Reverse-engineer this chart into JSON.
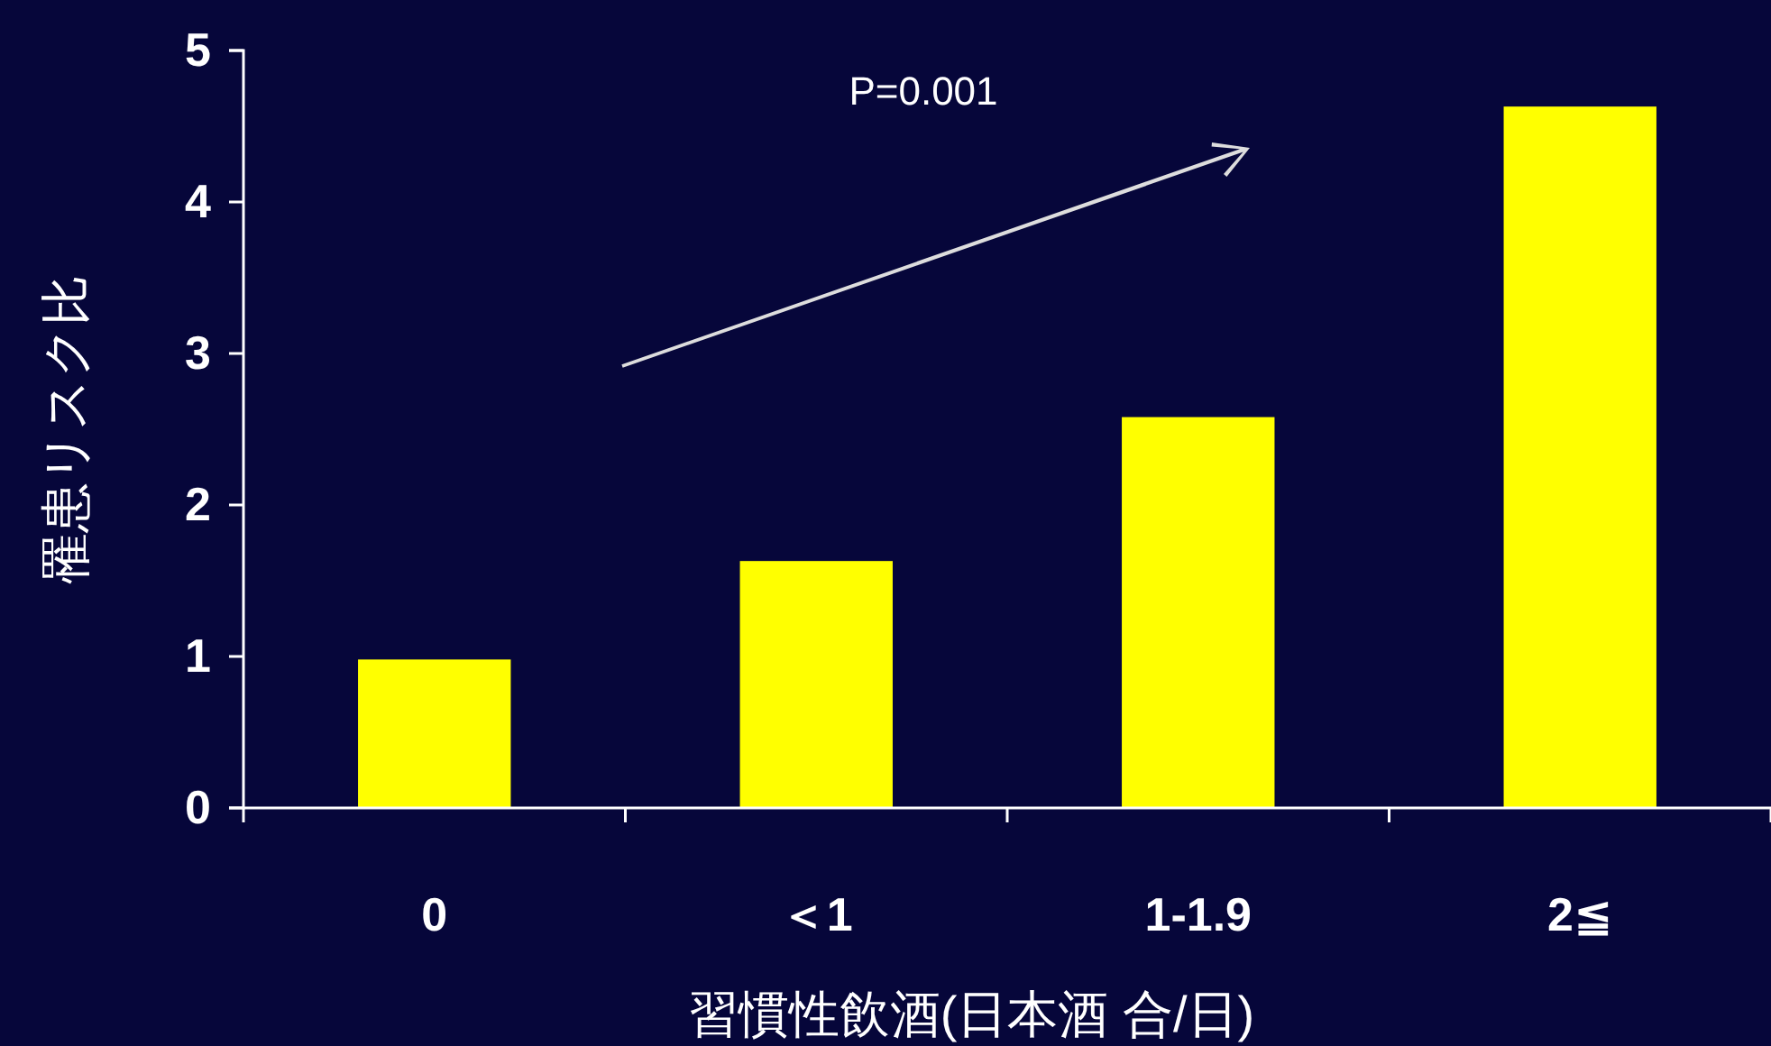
{
  "chart_data": {
    "type": "bar",
    "xlabel": "習慣性飲酒(日本酒 合/日)",
    "ylabel": "罹患リスク比",
    "categories": [
      "0",
      "＜1",
      "1-1.9",
      "2≦"
    ],
    "values": [
      0.98,
      1.63,
      2.58,
      4.63
    ],
    "color": "#ffff00",
    "ylim": [
      0,
      5
    ],
    "yticks": [
      0,
      1,
      2,
      3,
      4,
      5
    ],
    "grid": false,
    "annotations": [
      "P=0.001"
    ]
  }
}
